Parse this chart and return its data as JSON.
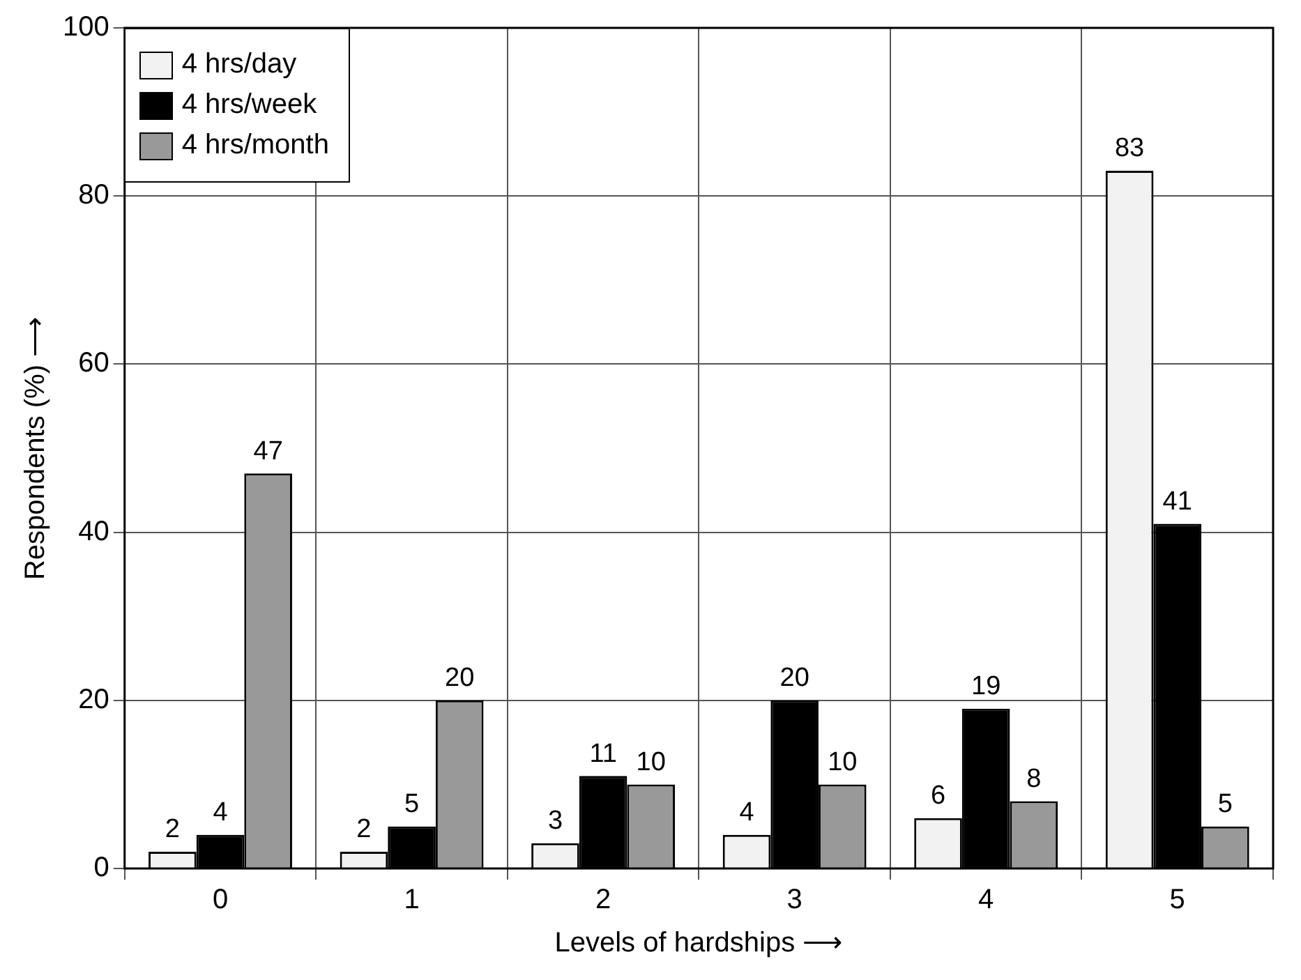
{
  "chart_data": {
    "type": "bar",
    "xlabel": "Levels of hardships ⟶",
    "ylabel": "Respondents (%) ⟶",
    "categories": [
      "0",
      "1",
      "2",
      "3",
      "4",
      "5"
    ],
    "series": [
      {
        "name": "4 hrs/day",
        "color": "#f2f2f2",
        "values": [
          2,
          2,
          3,
          4,
          6,
          83
        ]
      },
      {
        "name": "4 hrs/week",
        "color": "#000000",
        "values": [
          4,
          5,
          11,
          20,
          19,
          41
        ]
      },
      {
        "name": "4 hrs/month",
        "color": "#999999",
        "values": [
          47,
          20,
          10,
          10,
          8,
          5
        ]
      }
    ],
    "ylim": [
      0,
      100
    ],
    "yticks": [
      0,
      20,
      40,
      60,
      80,
      100
    ],
    "grid": true,
    "legend": "top left",
    "data_labels": true
  }
}
